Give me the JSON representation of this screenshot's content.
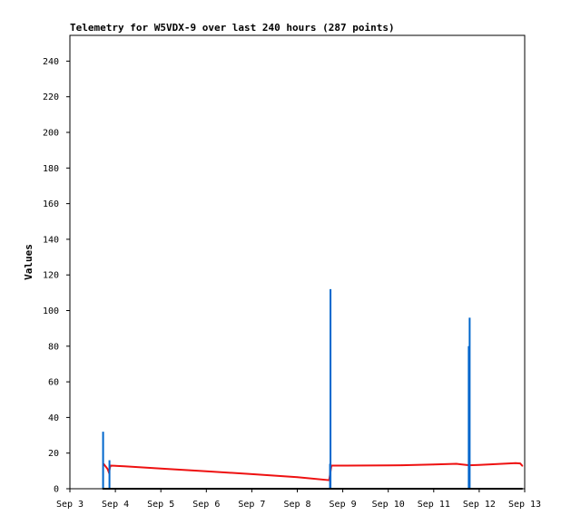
{
  "chart_data": {
    "type": "line",
    "title": "Telemetry for W5VDX-9 over last 240 hours (287 points)",
    "xlabel": "",
    "ylabel": "Values",
    "ylim": [
      0,
      255
    ],
    "yticks": [
      0,
      20,
      40,
      60,
      80,
      100,
      120,
      140,
      160,
      180,
      200,
      220,
      240
    ],
    "xlim": [
      3,
      13
    ],
    "xticks": [
      3,
      4,
      5,
      6,
      7,
      8,
      9,
      10,
      11,
      12,
      13
    ],
    "xtick_labels": [
      "Sep 3",
      "Sep 4",
      "Sep 5",
      "Sep 6",
      "Sep 7",
      "Sep 8",
      "Sep 9",
      "Sep 10",
      "Sep 11",
      "Sep 12",
      "Sep 13"
    ],
    "grid": false,
    "series": [
      {
        "color": "#ee1111",
        "style": "line",
        "points": [
          [
            3.74,
            14
          ],
          [
            3.77,
            13
          ],
          [
            3.8,
            12
          ],
          [
            3.83,
            11
          ],
          [
            3.86,
            9
          ],
          [
            3.88,
            12
          ],
          [
            3.9,
            13
          ],
          [
            4.2,
            12.6
          ],
          [
            5.0,
            11.3
          ],
          [
            6.0,
            9.8
          ],
          [
            7.0,
            8.2
          ],
          [
            8.0,
            6.5
          ],
          [
            8.7,
            4.8
          ],
          [
            8.75,
            13
          ],
          [
            9.0,
            13
          ],
          [
            10.0,
            13.1
          ],
          [
            10.3,
            13.2
          ],
          [
            11.0,
            13.6
          ],
          [
            11.5,
            14
          ],
          [
            11.78,
            13.2
          ],
          [
            12.0,
            13.4
          ],
          [
            12.8,
            14.4
          ],
          [
            12.9,
            14.2
          ],
          [
            12.95,
            12.8
          ]
        ]
      },
      {
        "color": "#0066cc",
        "style": "spikes",
        "points": [
          [
            3.73,
            32
          ],
          [
            3.87,
            16
          ],
          [
            8.72,
            14
          ],
          [
            8.73,
            112
          ],
          [
            11.77,
            80
          ],
          [
            11.79,
            96
          ]
        ]
      },
      {
        "color": "#000000",
        "style": "line",
        "points": [
          [
            3.72,
            0
          ],
          [
            12.95,
            0
          ]
        ]
      }
    ]
  }
}
